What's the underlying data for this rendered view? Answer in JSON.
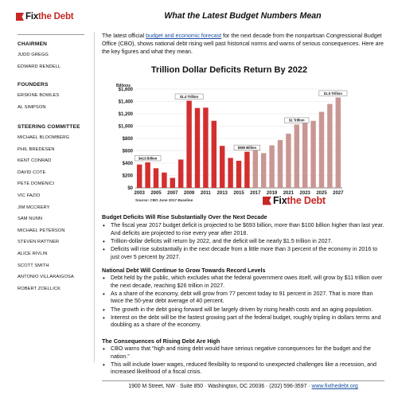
{
  "logo": {
    "pre": "Fix",
    "post": "the Debt"
  },
  "sidebar": {
    "chairmen": {
      "heading": "Chairmen",
      "items": [
        "Judd Gregg",
        "Edward Rendell"
      ]
    },
    "founders": {
      "heading": "Founders",
      "items": [
        "Erskine Bowles",
        "Al Simpson"
      ]
    },
    "steering": {
      "heading": "Steering Committee",
      "items": [
        "Michael Bloomberg",
        "Phil Bredesen",
        "Kent Conrad",
        "David Cote",
        "Pete Domenici",
        "Vic Fazio",
        "Jim McCrery",
        "Sam Nunn",
        "Michael Peterson",
        "Steven Rattner",
        "Alice Rivlin",
        "Scott Smith",
        "Antonio Villaraigosa",
        "Robert Zoellick"
      ]
    }
  },
  "document": {
    "title": "What the Latest Budget Numbers Mean",
    "intro_pre": "The latest official ",
    "intro_link": "budget and economic forecast",
    "intro_post": " for the next decade from the nonpartisan Congressional Budget Office (CBO), shows national debt rising well past historical norms and warns of serious consequences. Here are the key figures and what they mean."
  },
  "sections": [
    {
      "heading": "Budget Deficits Will Rise Substantially Over the Next Decade",
      "bullets": [
        "The fiscal year 2017 budget deficit is projected to be $693 billion, more than $100 billion higher than last year. And deficits are projected to rise every year after 2018.",
        "Trillion-dollar deficits will return by 2022, and the deficit will be nearly $1.5 trillion in 2027.",
        "Deficits will rise substantially in the next decade from a little more than 3 percent of the economy in 2016 to just over 5 percent by 2027."
      ]
    },
    {
      "heading": "National Debt Will Continue to Grow Towards Record Levels",
      "bullets": [
        "Debt held by the public, which excludes what the federal government owes itself, will grow by $11 trillion over the next decade, reaching $26 trillion in 2027.",
        "As a share of the economy, debt will grow from 77 percent today to 91 percent in 2027. That is more than twice the 50-year debt average of 40 percent.",
        "The growth in the debt going forward will be largely driven by rising health costs and an aging population.",
        "Interest on the debt will be the fastest growing part of the federal budget, roughly tripling in dollars terms and doubling as a share of the economy."
      ]
    },
    {
      "heading": "The Consequences of Rising Debt Are High",
      "bullets": [
        "CBO warns that “high and rising debt would have serious negative consequences for the budget and the nation.”",
        "This will include lower wages, reduced flexibility to respond to unexpected challenges like a recession, and increased likelihood of a fiscal crisis."
      ]
    }
  ],
  "chart_data": {
    "type": "bar",
    "title": "Trillion Dollar Deficits Return By 2022",
    "ylabel": "Billions",
    "ylim": [
      0,
      1600
    ],
    "yticks": [
      "$0",
      "$200",
      "$400",
      "$600",
      "$800",
      "$1,000",
      "$1,200",
      "$1,400",
      "$1,600"
    ],
    "xtick_labels": [
      "2003",
      "2005",
      "2007",
      "2009",
      "2011",
      "2013",
      "2015",
      "2017",
      "2019",
      "2021",
      "2023",
      "2025",
      "2027"
    ],
    "categories": [
      "2003",
      "2004",
      "2005",
      "2006",
      "2007",
      "2008",
      "2009",
      "2010",
      "2011",
      "2012",
      "2013",
      "2014",
      "2015",
      "2016",
      "2017",
      "2018",
      "2019",
      "2020",
      "2021",
      "2022",
      "2023",
      "2024",
      "2025",
      "2026",
      "2027"
    ],
    "values": [
      378,
      413,
      318,
      248,
      161,
      459,
      1413,
      1294,
      1300,
      1087,
      680,
      485,
      439,
      585,
      693,
      563,
      689,
      775,
      879,
      1027,
      1051,
      1086,
      1232,
      1360,
      1465
    ],
    "projection_start": "2017",
    "colors": {
      "actual": "#d32f2f",
      "projected": "#c99793"
    },
    "annotations": [
      {
        "text": "$413 Billion",
        "index": 1
      },
      {
        "text": "$1.4 Trillion",
        "index": 6
      },
      {
        "text": "$585 Billion",
        "index": 13
      },
      {
        "text": "$1 Trillion",
        "index": 19
      },
      {
        "text": "$1.5 Trillion",
        "index": 24
      }
    ],
    "source": "Source: CBO June 2017 Baseline",
    "grid": true
  },
  "footer": {
    "text": "1900 M Street, NW · Suite 850 · Washington, DC 20036 · (202) 596-3597 · ",
    "link": "www.fixthedebt.org"
  }
}
